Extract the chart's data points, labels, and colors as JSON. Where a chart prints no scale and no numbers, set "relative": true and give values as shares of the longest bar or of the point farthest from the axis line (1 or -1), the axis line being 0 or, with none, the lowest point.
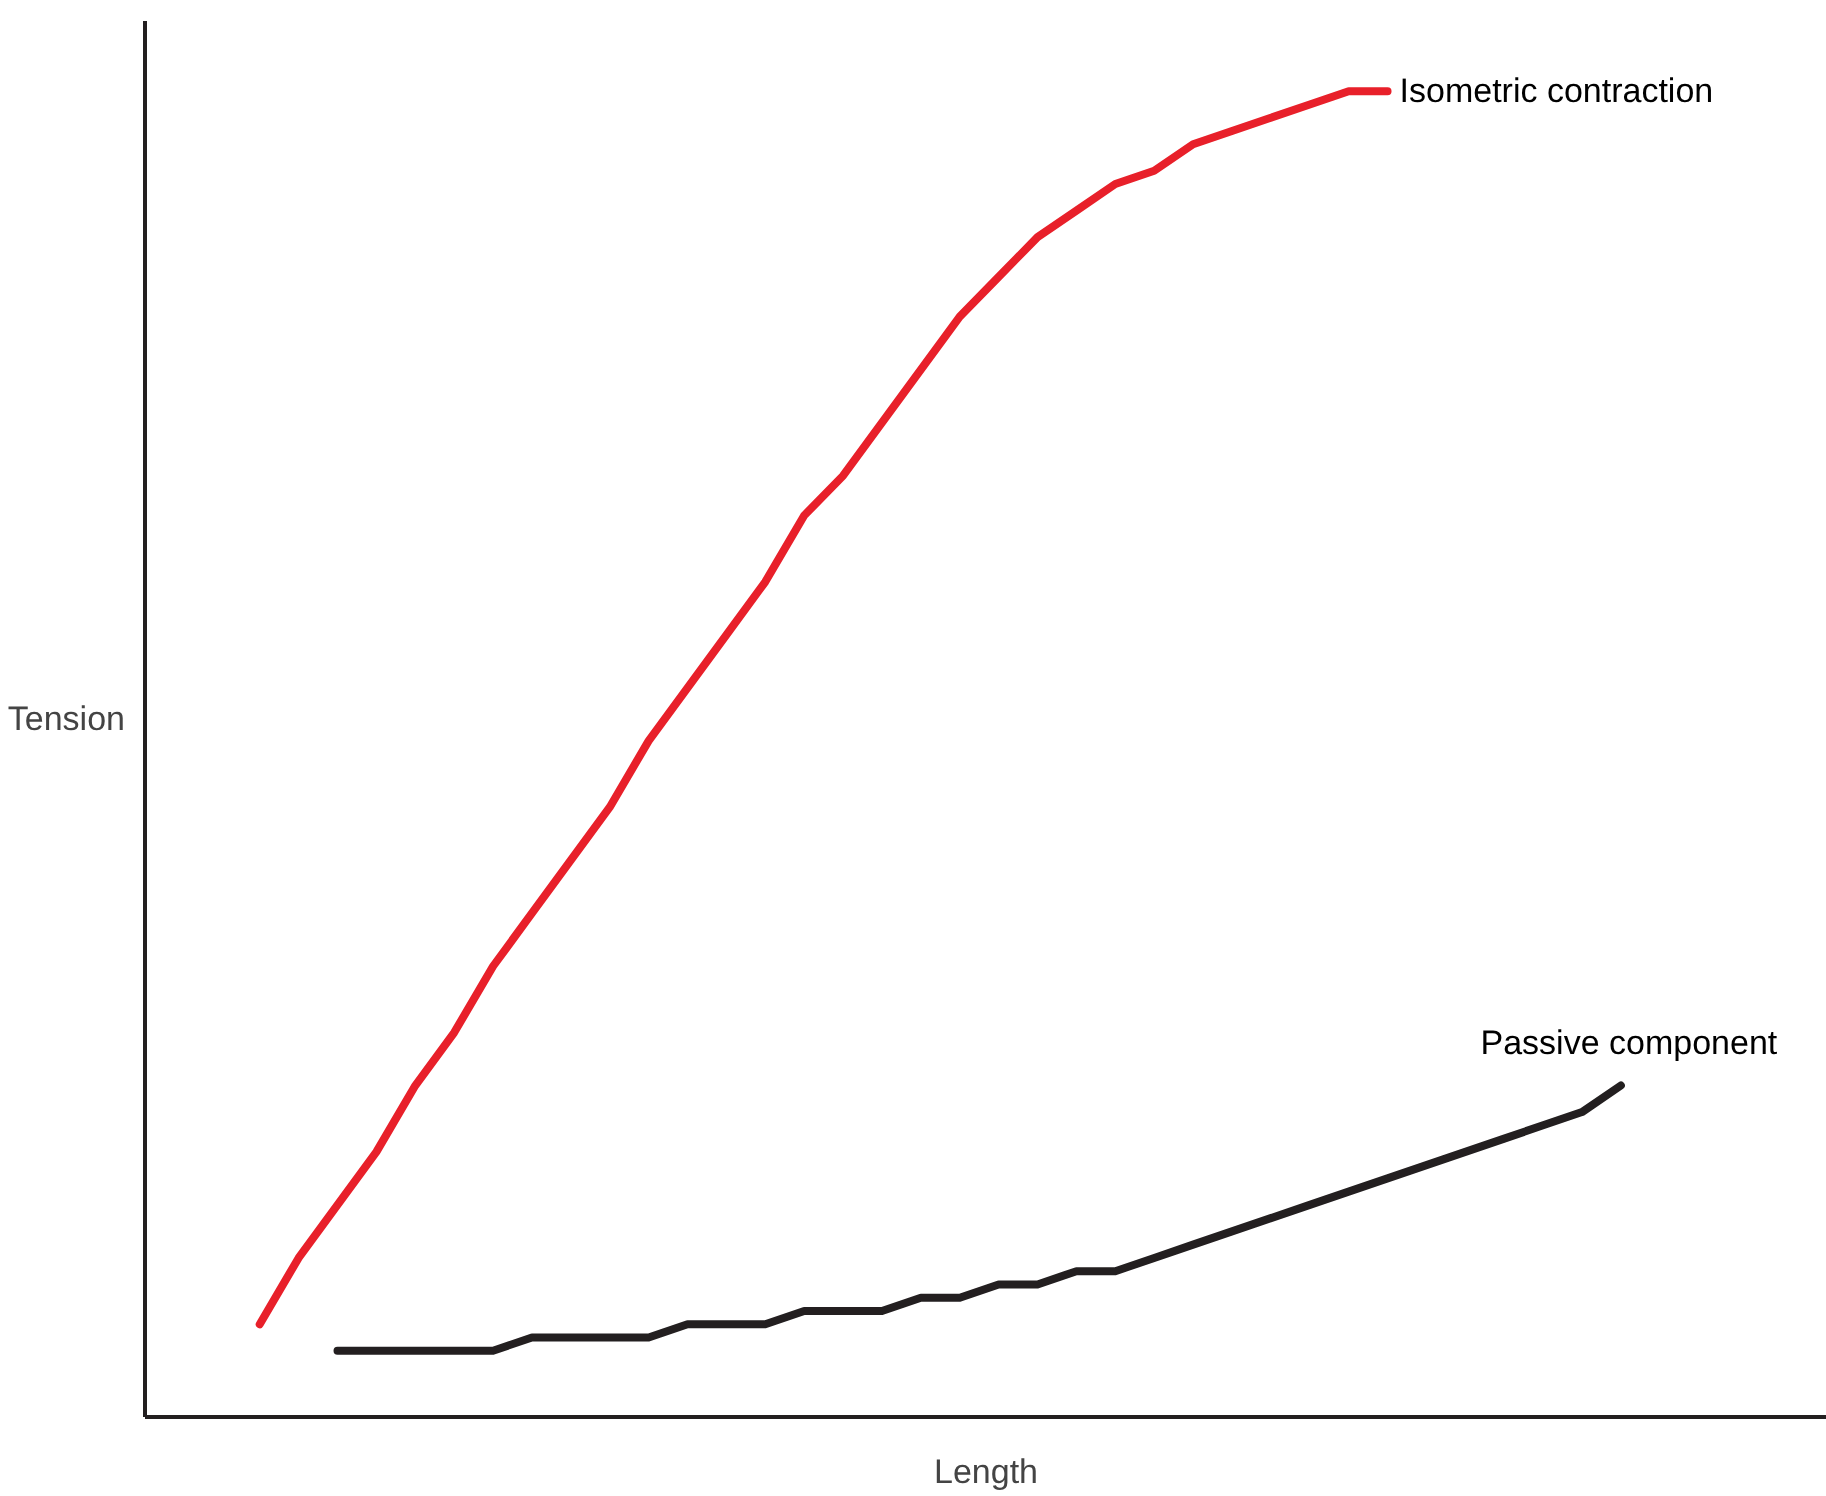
{
  "chart_data": {
    "type": "line",
    "relative": true,
    "xlabel": "Length",
    "ylabel": "Tension",
    "categories": [
      null,
      null,
      null,
      null,
      null,
      null,
      null,
      null,
      null,
      null,
      null,
      null,
      null,
      null,
      null,
      null,
      null,
      null,
      null,
      null,
      null,
      null,
      null,
      null,
      null,
      null,
      null,
      null,
      null,
      null,
      null,
      null,
      null,
      null,
      null,
      null
    ],
    "series": [
      {
        "name": "Isometric contraction",
        "color": "#e8202a",
        "values": [
          0.07,
          0.12,
          0.16,
          0.2,
          0.25,
          0.29,
          0.34,
          0.38,
          0.42,
          0.46,
          0.51,
          0.55,
          0.59,
          0.63,
          0.68,
          0.71,
          0.75,
          0.79,
          0.83,
          0.86,
          0.89,
          0.91,
          0.93,
          0.94,
          0.96,
          0.97,
          0.98,
          0.99,
          1.0,
          1.0,
          null,
          null,
          null,
          null,
          null,
          null
        ]
      },
      {
        "name": "Passive component",
        "color": "#231f20",
        "values": [
          null,
          null,
          0.05,
          0.05,
          0.05,
          0.05,
          0.05,
          0.06,
          0.06,
          0.06,
          0.06,
          0.07,
          0.07,
          0.07,
          0.08,
          0.08,
          0.08,
          0.09,
          0.09,
          0.1,
          0.1,
          0.11,
          0.11,
          0.12,
          0.13,
          0.14,
          0.15,
          0.16,
          0.17,
          0.18,
          0.19,
          0.2,
          0.21,
          0.22,
          0.23,
          0.25
        ]
      }
    ]
  }
}
